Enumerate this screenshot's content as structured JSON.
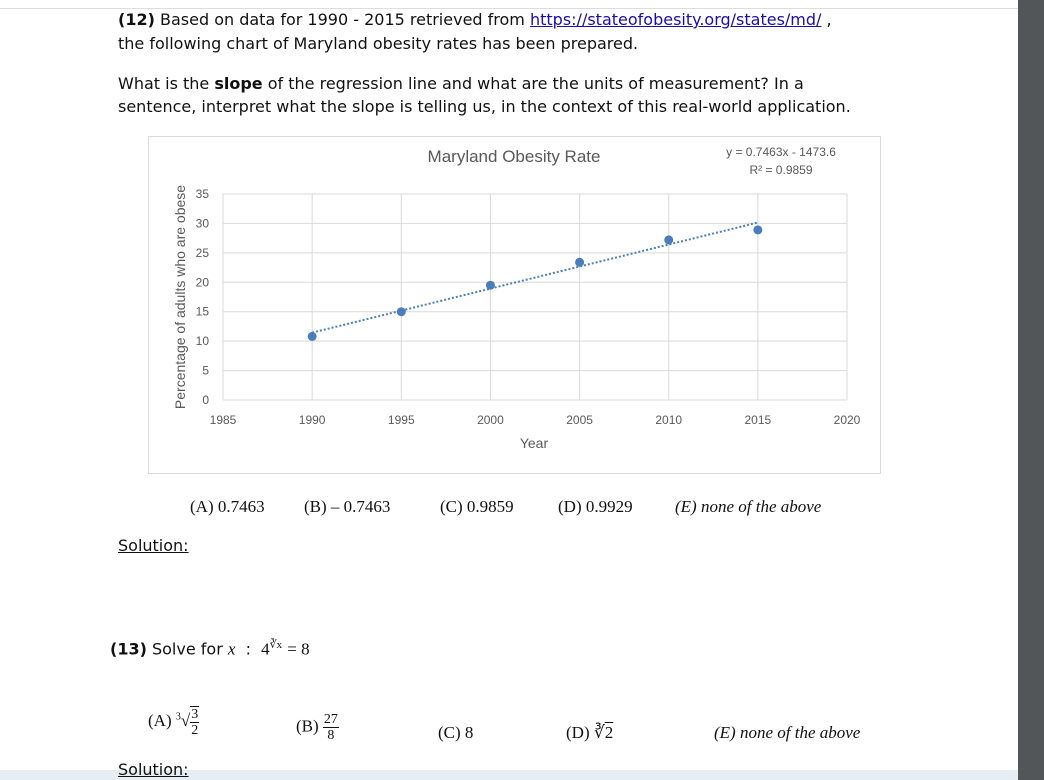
{
  "q12": {
    "number": "(12)",
    "intro": "Based on data for 1990 - 2015 retrieved from",
    "link": "https://stateofobesity.org/states/md/",
    "intro_end": ",",
    "line2": "the following chart of Maryland obesity rates has been prepared.",
    "question_start": "What is the",
    "question_bold": "slope",
    "question_rest": "of the regression line and what are the units of measurement? In a",
    "question_line2": "sentence, interpret what the slope is telling us, in the context of this real-world application.",
    "choices": [
      "(A) 0.7463",
      "(B) – 0.7463",
      "(C) 0.9859",
      "(D) 0.9929",
      "(E) none of the above"
    ],
    "solution": "Solution:"
  },
  "chart_data": {
    "type": "scatter",
    "title": "Maryland Obesity Rate",
    "equation": "y = 0.7463x - 1473.6",
    "r_squared": "R² = 0.9859",
    "x_label": "Year",
    "y_label": "Percentage of adults who are obese",
    "x": [
      1990,
      1995,
      2000,
      2005,
      2010,
      2015
    ],
    "values": [
      10.8,
      15.0,
      19.5,
      23.4,
      27.2,
      28.9
    ],
    "color": "#4a7ebb",
    "xlim": [
      1985,
      2020
    ],
    "xticks": [
      1985,
      1990,
      1995,
      2000,
      2005,
      2010,
      2015,
      2020
    ],
    "ylim": [
      0,
      35
    ],
    "yticks": [
      0,
      5,
      10,
      15,
      20,
      25,
      30,
      35
    ],
    "grid": true,
    "trendline": true
  },
  "q13": {
    "number": "(13)",
    "prompt": "Solve for",
    "variable": "x",
    "colon": ":",
    "base": "4",
    "exponent": "∛x",
    "equals": "= 8",
    "choices": {
      "a": {
        "label": "(A)",
        "index": "3",
        "numerator": "3",
        "denominator": "2"
      },
      "b": {
        "label": "(B)",
        "numerator": "27",
        "denominator": "8"
      },
      "c": "(C) 8",
      "d": {
        "label": "(D)",
        "radical": "∛",
        "radicand": "2"
      },
      "e": "(E) none of the above"
    },
    "solution": "Solution:"
  }
}
